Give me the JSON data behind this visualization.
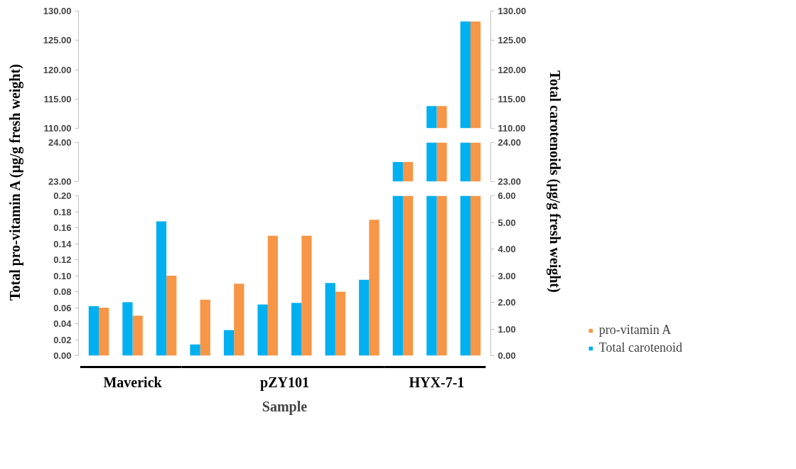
{
  "chart_data": [
    {
      "type": "bar",
      "categories": [
        null,
        null,
        null,
        null,
        null,
        null,
        null,
        null,
        null,
        null,
        null,
        null
      ],
      "series": [
        {
          "color": "#f79646",
          "axis": "y",
          "values": [
            null,
            null,
            null,
            null,
            null,
            null,
            null,
            null,
            null,
            null,
            113.8,
            128.2
          ]
        },
        {
          "color": "#00b0f0",
          "axis": "y2",
          "values": [
            null,
            null,
            null,
            null,
            null,
            null,
            null,
            null,
            null,
            null,
            113.8,
            128.2
          ]
        }
      ],
      "ylim": [
        110,
        130
      ],
      "yticks": [
        {
          "value": 110,
          "label": "110.00"
        },
        {
          "value": 115,
          "label": "115.00"
        },
        {
          "value": 120,
          "label": "120.00"
        },
        {
          "value": 125,
          "label": "125.00"
        },
        {
          "value": 130,
          "label": "130.00"
        }
      ],
      "y2lim": [
        110,
        130
      ],
      "y2ticks": [
        {
          "value": 110,
          "label": "110.00"
        },
        {
          "value": 115,
          "label": "115.00"
        },
        {
          "value": 120,
          "label": "120.00"
        },
        {
          "value": 125,
          "label": "125.00"
        },
        {
          "value": 130,
          "label": "130.00"
        }
      ],
      "grid": false
    },
    {
      "type": "bar",
      "categories": [
        null,
        null,
        null,
        null,
        null,
        null,
        null,
        null,
        null,
        null,
        null,
        null
      ],
      "series": [
        {
          "color": "#f79646",
          "axis": "y",
          "values": [
            null,
            null,
            null,
            null,
            null,
            null,
            null,
            null,
            null,
            23.5,
            24,
            24
          ]
        },
        {
          "color": "#00b0f0",
          "axis": "y2",
          "values": [
            null,
            null,
            null,
            null,
            null,
            null,
            null,
            null,
            null,
            23.5,
            24,
            24
          ]
        }
      ],
      "ylim": [
        23,
        24
      ],
      "yticks": [
        {
          "value": 23,
          "label": "23.00"
        },
        {
          "value": 24,
          "label": "24.00"
        }
      ],
      "y2lim": [
        23,
        24
      ],
      "y2ticks": [
        {
          "value": 23,
          "label": "23.00"
        },
        {
          "value": 24,
          "label": "24.00"
        }
      ],
      "grid": false
    },
    {
      "type": "bar",
      "categories": [
        null,
        null,
        null,
        null,
        null,
        null,
        null,
        null,
        null,
        null,
        null,
        null
      ],
      "xlabel": "Sample",
      "ylabel": "Total pro-vitamin A (µg/g fresh weight)",
      "y2label": "Total carotenoids (µg/g fresh weight)",
      "series": [
        {
          "name": "pro-vitamin A",
          "color": "#f79646",
          "axis": "y",
          "values": [
            0.06,
            0.05,
            0.1,
            0.07,
            0.09,
            0.15,
            0.15,
            0.08,
            0.17,
            0.2,
            0.2,
            0.2
          ]
        },
        {
          "name": "Total carotenoid",
          "color": "#00b0f0",
          "axis": "y2",
          "values": [
            1.86,
            2.01,
            5.04,
            0.42,
            0.96,
            1.92,
            1.98,
            2.73,
            2.85,
            6.0,
            6.0,
            6.0
          ]
        }
      ],
      "ylim": [
        0,
        0.2
      ],
      "yticks": [
        {
          "value": 0,
          "label": "0.00"
        },
        {
          "value": 0.02,
          "label": "0.02"
        },
        {
          "value": 0.04,
          "label": "0.04"
        },
        {
          "value": 0.06,
          "label": "0.06"
        },
        {
          "value": 0.08,
          "label": "0.08"
        },
        {
          "value": 0.1,
          "label": "0.10"
        },
        {
          "value": 0.12,
          "label": "0.12"
        },
        {
          "value": 0.14,
          "label": "0.14"
        },
        {
          "value": 0.16,
          "label": "0.16"
        },
        {
          "value": 0.18,
          "label": "0.18"
        },
        {
          "value": 0.2,
          "label": "0.20"
        }
      ],
      "y2lim": [
        0,
        6
      ],
      "y2ticks": [
        {
          "value": 0,
          "label": "0.00"
        },
        {
          "value": 1,
          "label": "1.00"
        },
        {
          "value": 2,
          "label": "2.00"
        },
        {
          "value": 3,
          "label": "3.00"
        },
        {
          "value": 4,
          "label": "4.00"
        },
        {
          "value": 5,
          "label": "5.00"
        },
        {
          "value": 6,
          "label": "6.00"
        }
      ],
      "annotations": [
        "Maverick",
        "pZY101",
        "HYX-7-1"
      ],
      "legend": "bottom right",
      "grid": false
    }
  ]
}
